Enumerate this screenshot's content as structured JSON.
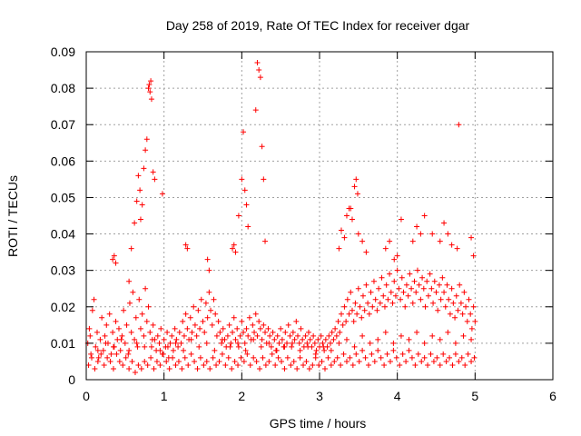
{
  "chart_data": {
    "type": "scatter",
    "title": "Day 258 of 2019, Rate Of TEC Index for receiver dgar",
    "xlabel": "GPS time / hours",
    "ylabel": "ROTI / TECUs",
    "xlim": [
      0,
      6
    ],
    "ylim": [
      0,
      0.09
    ],
    "xticks": [
      0,
      1,
      2,
      3,
      4,
      5,
      6
    ],
    "yticks": [
      0,
      0.01,
      0.02,
      0.03,
      0.04,
      0.05,
      0.06,
      0.07,
      0.08,
      0.09
    ],
    "ytick_labels": [
      "0",
      "0.01",
      "0.02",
      "0.03",
      "0.04",
      "0.05",
      "0.06",
      "0.07",
      "0.08",
      "0.09"
    ],
    "grid": true,
    "marker": "+",
    "color": "#ff0000",
    "series": [
      {
        "name": "ROTI",
        "x": [
          0.02,
          0.04,
          0.06,
          0.08,
          0.1,
          0.12,
          0.14,
          0.16,
          0.18,
          0.2,
          0.22,
          0.24,
          0.26,
          0.28,
          0.3,
          0.32,
          0.34,
          0.36,
          0.38,
          0.4,
          0.42,
          0.44,
          0.46,
          0.48,
          0.5,
          0.52,
          0.54,
          0.56,
          0.58,
          0.6,
          0.62,
          0.64,
          0.66,
          0.68,
          0.7,
          0.72,
          0.74,
          0.76,
          0.78,
          0.8,
          0.82,
          0.84,
          0.86,
          0.88,
          0.9,
          0.92,
          0.94,
          0.96,
          0.98,
          1.0,
          1.02,
          1.04,
          1.06,
          1.08,
          1.1,
          1.12,
          1.14,
          1.16,
          1.18,
          1.2,
          1.22,
          1.24,
          1.26,
          1.28,
          1.3,
          1.32,
          1.34,
          1.36,
          1.38,
          1.4,
          1.42,
          1.44,
          1.46,
          1.48,
          1.5,
          1.52,
          1.54,
          1.56,
          1.58,
          1.6,
          1.62,
          1.64,
          1.66,
          1.68,
          1.7,
          1.72,
          1.74,
          1.76,
          1.78,
          1.8,
          1.82,
          1.84,
          1.86,
          1.88,
          1.9,
          1.92,
          1.94,
          1.96,
          1.98,
          2.0,
          2.02,
          2.04,
          2.06,
          2.08,
          2.1,
          2.12,
          2.14,
          2.16,
          2.18,
          2.2,
          2.22,
          2.24,
          2.26,
          2.28,
          2.3,
          2.32,
          2.34,
          2.36,
          2.38,
          2.4,
          2.42,
          2.44,
          2.46,
          2.48,
          2.5,
          2.52,
          2.54,
          2.56,
          2.58,
          2.6,
          2.62,
          2.64,
          2.66,
          2.68,
          2.7,
          2.72,
          2.74,
          2.76,
          2.78,
          2.8,
          2.82,
          2.84,
          2.86,
          2.88,
          2.9,
          2.92,
          2.94,
          2.96,
          2.98,
          3.0,
          3.02,
          3.04,
          3.06,
          3.08,
          3.1,
          3.12,
          3.14,
          3.16,
          3.18,
          3.2,
          3.22,
          3.24,
          3.26,
          3.28,
          3.3,
          3.32,
          3.34,
          3.36,
          3.38,
          3.4,
          3.42,
          3.44,
          3.46,
          3.48,
          3.5,
          3.52,
          3.54,
          3.56,
          3.58,
          3.6,
          3.62,
          3.64,
          3.66,
          3.68,
          3.7,
          3.72,
          3.74,
          3.76,
          3.78,
          3.8,
          3.82,
          3.84,
          3.86,
          3.88,
          3.9,
          3.92,
          3.94,
          3.96,
          3.98,
          4.0,
          4.02,
          4.04,
          4.06,
          4.08,
          4.1,
          4.12,
          4.14,
          4.16,
          4.18,
          4.2,
          4.22,
          4.24,
          4.26,
          4.28,
          4.3,
          4.32,
          4.34,
          4.36,
          4.38,
          4.4,
          4.42,
          4.44,
          4.46,
          4.48,
          4.5,
          4.52,
          4.54,
          4.56,
          4.58,
          4.6,
          4.62,
          4.64,
          4.66,
          4.68,
          4.7,
          4.72,
          4.74,
          4.76,
          4.78,
          4.8,
          4.82,
          4.84,
          4.86,
          4.88,
          4.9,
          4.92,
          4.94,
          4.96,
          4.98,
          5.0,
          0.03,
          0.07,
          0.11,
          0.15,
          0.19,
          0.23,
          0.27,
          0.31,
          0.35,
          0.39,
          0.43,
          0.47,
          0.51,
          0.55,
          0.59,
          0.63,
          0.67,
          0.71,
          0.75,
          0.79,
          0.83,
          0.87,
          0.91,
          0.95,
          0.99,
          1.03,
          1.07,
          1.11,
          1.15,
          1.19,
          1.23,
          1.27,
          1.31,
          1.35,
          1.39,
          1.43,
          1.47,
          1.51,
          1.55,
          1.59,
          1.63,
          1.67,
          1.71,
          1.75,
          1.79,
          1.83,
          1.87,
          1.91,
          1.95,
          1.99,
          2.03,
          2.07,
          2.11,
          2.15,
          2.19,
          2.23,
          2.27,
          2.31,
          2.35,
          2.39,
          2.43,
          2.47,
          2.51,
          2.55,
          2.59,
          2.63,
          2.67,
          2.71,
          2.75,
          2.79,
          2.83,
          2.87,
          2.91,
          2.95,
          2.99,
          3.03,
          3.07,
          3.11,
          3.15,
          3.19,
          3.23,
          3.27,
          3.31,
          3.35,
          3.39,
          3.43,
          3.47,
          3.51,
          3.55,
          3.59,
          3.63,
          3.67,
          3.71,
          3.75,
          3.79,
          3.83,
          3.87,
          3.91,
          3.95,
          3.99,
          4.03,
          4.07,
          4.11,
          4.15,
          4.19,
          4.23,
          4.27,
          4.31,
          4.35,
          4.39,
          4.43,
          4.47,
          4.51,
          4.55,
          4.59,
          4.63,
          4.67,
          4.71,
          4.75,
          4.79,
          4.83,
          4.87,
          4.91,
          4.95,
          4.99,
          0.05,
          0.15,
          0.25,
          0.35,
          0.45,
          0.55,
          0.65,
          0.75,
          0.85,
          0.95,
          1.05,
          1.15,
          1.25,
          1.35,
          1.45,
          1.55,
          1.65,
          1.75,
          1.85,
          1.95,
          2.05,
          2.15,
          2.25,
          2.35,
          2.45,
          2.55,
          2.65,
          2.75,
          2.85,
          2.95,
          3.05,
          3.15,
          3.25,
          3.35,
          3.45,
          3.55,
          3.65,
          3.75,
          3.85,
          3.95,
          4.05,
          4.15,
          4.25,
          4.35,
          4.45,
          4.55,
          4.65,
          4.75,
          4.85,
          4.95,
          0.34,
          0.36,
          0.38,
          0.55,
          0.58,
          0.62,
          0.65,
          0.67,
          0.69,
          0.7,
          0.72,
          0.74,
          0.76,
          0.78,
          0.8,
          0.81,
          0.82,
          0.83,
          0.84,
          0.86,
          0.88,
          0.98,
          1.28,
          1.3,
          1.56,
          1.58,
          1.88,
          1.9,
          1.92,
          1.96,
          2.0,
          2.02,
          2.04,
          2.06,
          2.08,
          2.18,
          2.2,
          2.22,
          2.24,
          2.26,
          2.28,
          2.3,
          3.25,
          3.28,
          3.32,
          3.35,
          3.38,
          3.4,
          3.42,
          3.45,
          3.47,
          3.49,
          3.5,
          3.55,
          3.6,
          3.85,
          3.9,
          3.96,
          4.0,
          4.05,
          4.2,
          4.25,
          4.3,
          4.35,
          4.45,
          4.55,
          4.6,
          4.65,
          4.7,
          4.77,
          4.79,
          4.95,
          4.98
        ],
        "y": [
          0.01,
          0.014,
          0.007,
          0.019,
          0.022,
          0.009,
          0.013,
          0.006,
          0.011,
          0.017,
          0.008,
          0.012,
          0.015,
          0.01,
          0.018,
          0.007,
          0.013,
          0.009,
          0.016,
          0.011,
          0.014,
          0.008,
          0.012,
          0.019,
          0.01,
          0.015,
          0.007,
          0.021,
          0.013,
          0.024,
          0.011,
          0.017,
          0.009,
          0.022,
          0.014,
          0.018,
          0.012,
          0.025,
          0.016,
          0.02,
          0.013,
          0.009,
          0.015,
          0.011,
          0.008,
          0.012,
          0.01,
          0.014,
          0.007,
          0.011,
          0.009,
          0.013,
          0.006,
          0.01,
          0.012,
          0.008,
          0.014,
          0.011,
          0.009,
          0.013,
          0.01,
          0.016,
          0.012,
          0.018,
          0.014,
          0.011,
          0.017,
          0.013,
          0.02,
          0.015,
          0.012,
          0.019,
          0.014,
          0.022,
          0.016,
          0.013,
          0.021,
          0.017,
          0.024,
          0.019,
          0.015,
          0.022,
          0.018,
          0.012,
          0.016,
          0.013,
          0.01,
          0.014,
          0.011,
          0.009,
          0.012,
          0.015,
          0.01,
          0.013,
          0.017,
          0.011,
          0.014,
          0.009,
          0.012,
          0.016,
          0.013,
          0.01,
          0.014,
          0.012,
          0.017,
          0.011,
          0.015,
          0.013,
          0.018,
          0.012,
          0.016,
          0.014,
          0.011,
          0.015,
          0.013,
          0.01,
          0.014,
          0.012,
          0.009,
          0.013,
          0.011,
          0.008,
          0.012,
          0.01,
          0.014,
          0.011,
          0.009,
          0.013,
          0.01,
          0.015,
          0.012,
          0.009,
          0.013,
          0.011,
          0.016,
          0.012,
          0.01,
          0.014,
          0.011,
          0.009,
          0.012,
          0.01,
          0.013,
          0.011,
          0.009,
          0.012,
          0.01,
          0.008,
          0.011,
          0.009,
          0.012,
          0.01,
          0.008,
          0.011,
          0.009,
          0.012,
          0.01,
          0.013,
          0.011,
          0.014,
          0.012,
          0.016,
          0.013,
          0.018,
          0.015,
          0.02,
          0.016,
          0.022,
          0.018,
          0.024,
          0.019,
          0.016,
          0.021,
          0.018,
          0.025,
          0.02,
          0.017,
          0.023,
          0.019,
          0.026,
          0.021,
          0.018,
          0.024,
          0.02,
          0.027,
          0.022,
          0.019,
          0.025,
          0.021,
          0.028,
          0.023,
          0.02,
          0.026,
          0.022,
          0.029,
          0.024,
          0.021,
          0.027,
          0.023,
          0.03,
          0.025,
          0.022,
          0.028,
          0.024,
          0.02,
          0.026,
          0.023,
          0.029,
          0.025,
          0.021,
          0.027,
          0.024,
          0.03,
          0.026,
          0.022,
          0.028,
          0.025,
          0.02,
          0.027,
          0.023,
          0.029,
          0.025,
          0.021,
          0.027,
          0.024,
          0.019,
          0.026,
          0.022,
          0.028,
          0.024,
          0.02,
          0.026,
          0.022,
          0.018,
          0.025,
          0.021,
          0.017,
          0.023,
          0.019,
          0.026,
          0.021,
          0.018,
          0.024,
          0.02,
          0.016,
          0.022,
          0.018,
          0.014,
          0.02,
          0.016,
          0.004,
          0.006,
          0.003,
          0.005,
          0.007,
          0.004,
          0.006,
          0.005,
          0.003,
          0.007,
          0.005,
          0.004,
          0.006,
          0.003,
          0.005,
          0.002,
          0.004,
          0.003,
          0.005,
          0.004,
          0.006,
          0.003,
          0.005,
          0.004,
          0.007,
          0.005,
          0.003,
          0.006,
          0.004,
          0.005,
          0.003,
          0.006,
          0.004,
          0.007,
          0.005,
          0.003,
          0.006,
          0.004,
          0.005,
          0.003,
          0.006,
          0.004,
          0.005,
          0.007,
          0.004,
          0.006,
          0.003,
          0.005,
          0.004,
          0.006,
          0.005,
          0.007,
          0.004,
          0.006,
          0.005,
          0.003,
          0.006,
          0.004,
          0.005,
          0.007,
          0.004,
          0.006,
          0.005,
          0.003,
          0.006,
          0.004,
          0.005,
          0.003,
          0.006,
          0.004,
          0.005,
          0.003,
          0.004,
          0.006,
          0.004,
          0.005,
          0.003,
          0.006,
          0.004,
          0.005,
          0.006,
          0.004,
          0.007,
          0.005,
          0.006,
          0.004,
          0.007,
          0.005,
          0.008,
          0.006,
          0.004,
          0.007,
          0.005,
          0.008,
          0.006,
          0.004,
          0.007,
          0.005,
          0.008,
          0.006,
          0.004,
          0.007,
          0.005,
          0.008,
          0.006,
          0.004,
          0.007,
          0.005,
          0.006,
          0.004,
          0.007,
          0.005,
          0.006,
          0.004,
          0.007,
          0.005,
          0.006,
          0.004,
          0.007,
          0.005,
          0.006,
          0.004,
          0.007,
          0.005,
          0.006,
          0.012,
          0.008,
          0.01,
          0.009,
          0.011,
          0.008,
          0.01,
          0.009,
          0.011,
          0.008,
          0.009,
          0.01,
          0.008,
          0.011,
          0.009,
          0.01,
          0.008,
          0.011,
          0.009,
          0.01,
          0.008,
          0.011,
          0.009,
          0.01,
          0.008,
          0.009,
          0.01,
          0.008,
          0.009,
          0.007,
          0.009,
          0.008,
          0.01,
          0.011,
          0.009,
          0.012,
          0.01,
          0.011,
          0.013,
          0.01,
          0.012,
          0.011,
          0.013,
          0.01,
          0.012,
          0.011,
          0.013,
          0.01,
          0.012,
          0.011,
          0.033,
          0.034,
          0.032,
          0.027,
          0.036,
          0.043,
          0.049,
          0.056,
          0.052,
          0.044,
          0.048,
          0.058,
          0.063,
          0.066,
          0.08,
          0.081,
          0.079,
          0.082,
          0.077,
          0.057,
          0.055,
          0.051,
          0.037,
          0.036,
          0.033,
          0.03,
          0.036,
          0.037,
          0.035,
          0.045,
          0.055,
          0.068,
          0.052,
          0.048,
          0.042,
          0.074,
          0.087,
          0.085,
          0.083,
          0.064,
          0.055,
          0.038,
          0.036,
          0.041,
          0.039,
          0.045,
          0.047,
          0.047,
          0.044,
          0.053,
          0.055,
          0.051,
          0.04,
          0.038,
          0.035,
          0.036,
          0.038,
          0.033,
          0.034,
          0.044,
          0.038,
          0.042,
          0.04,
          0.045,
          0.04,
          0.038,
          0.043,
          0.04,
          0.037,
          0.036,
          0.07,
          0.039,
          0.034
        ]
      }
    ]
  }
}
